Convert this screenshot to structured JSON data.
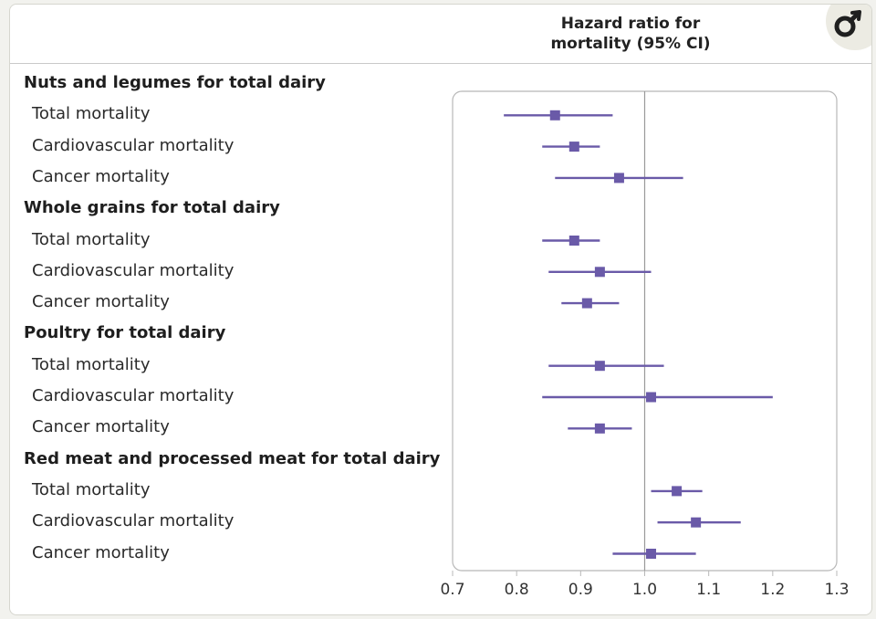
{
  "chart_data": {
    "type": "forest",
    "title": "Hazard ratio for mortality (95% CI)",
    "title_lines": [
      "Hazard ratio for",
      "mortality (95% CI)"
    ],
    "xlim": [
      0.7,
      1.3
    ],
    "x_ticks": [
      "0.7",
      "0.8",
      "0.9",
      "1.0",
      "1.1",
      "1.2",
      "1.3"
    ],
    "reference_line": 1.0,
    "colors": {
      "marker": "#6a5aa8",
      "ci": "#6a5aa8",
      "frame": "#b8b8b8",
      "reference": "#999999"
    },
    "groups": [
      {
        "label": "Nuts and legumes for total dairy",
        "rows": [
          {
            "label": "Total mortality",
            "hr": 0.86,
            "lo": 0.78,
            "hi": 0.95
          },
          {
            "label": "Cardiovascular mortality",
            "hr": 0.89,
            "lo": 0.84,
            "hi": 0.93
          },
          {
            "label": "Cancer mortality",
            "hr": 0.96,
            "lo": 0.86,
            "hi": 1.06
          }
        ]
      },
      {
        "label": "Whole grains for total dairy",
        "rows": [
          {
            "label": "Total mortality",
            "hr": 0.89,
            "lo": 0.84,
            "hi": 0.93
          },
          {
            "label": "Cardiovascular mortality",
            "hr": 0.93,
            "lo": 0.85,
            "hi": 1.01
          },
          {
            "label": "Cancer mortality",
            "hr": 0.91,
            "lo": 0.87,
            "hi": 0.96
          }
        ]
      },
      {
        "label": "Poultry for total dairy",
        "rows": [
          {
            "label": "Total mortality",
            "hr": 0.93,
            "lo": 0.85,
            "hi": 1.03
          },
          {
            "label": "Cardiovascular mortality",
            "hr": 1.01,
            "lo": 0.84,
            "hi": 1.2
          },
          {
            "label": "Cancer mortality",
            "hr": 0.93,
            "lo": 0.88,
            "hi": 0.98
          }
        ]
      },
      {
        "label": "Red meat and processed meat for total dairy",
        "rows": [
          {
            "label": "Total mortality",
            "hr": 1.05,
            "lo": 1.01,
            "hi": 1.09
          },
          {
            "label": "Cardiovascular mortality",
            "hr": 1.08,
            "lo": 1.02,
            "hi": 1.15
          },
          {
            "label": "Cancer mortality",
            "hr": 1.01,
            "lo": 0.95,
            "hi": 1.08
          }
        ]
      }
    ]
  },
  "logo": {
    "icon": "male-symbol-icon"
  }
}
